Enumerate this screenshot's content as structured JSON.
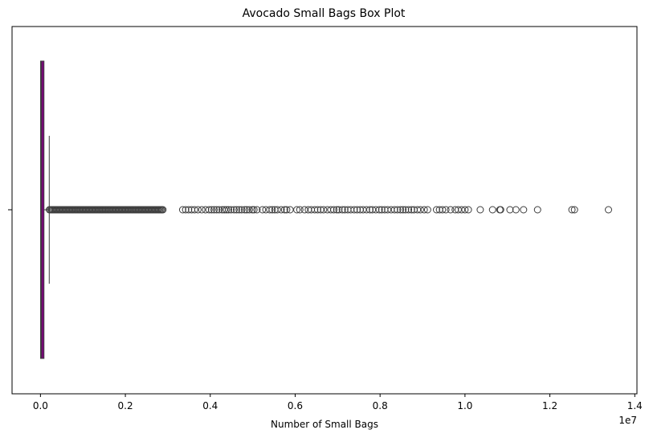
{
  "chart_data": {
    "type": "box",
    "title": "Avocado Small Bags Box Plot",
    "xlabel": "Number of Small Bags",
    "ylabel": "",
    "x_offset_text": "1e7",
    "xlim": [
      -0.06691,
      1.40512
    ],
    "xticks": [
      0.0,
      0.2,
      0.4,
      0.6,
      0.8,
      1.0,
      1.2,
      1.4
    ],
    "xtick_labels": [
      "0.0",
      "0.2",
      "0.4",
      "0.6",
      "0.8",
      "1.0",
      "1.2",
      "1.4"
    ],
    "orientation": "horizontal",
    "grid": false,
    "colors": {
      "box_fill": "#800080",
      "line": "#3d3d3d",
      "axes": "#000000"
    },
    "box": {
      "min": 0.0,
      "q1": 0.0003,
      "median": 0.0027,
      "q3": 0.0083,
      "whisker_high": 0.0207
    },
    "outlier_range_dense": [
      0.021,
      0.29
    ],
    "outliers": [
      0.335,
      0.342,
      0.349,
      0.356,
      0.363,
      0.371,
      0.38,
      0.389,
      0.397,
      0.403,
      0.409,
      0.415,
      0.421,
      0.428,
      0.433,
      0.438,
      0.443,
      0.449,
      0.456,
      0.462,
      0.468,
      0.474,
      0.481,
      0.486,
      0.492,
      0.499,
      0.503,
      0.51,
      0.523,
      0.531,
      0.54,
      0.546,
      0.552,
      0.558,
      0.567,
      0.575,
      0.58,
      0.588,
      0.604,
      0.611,
      0.622,
      0.631,
      0.638,
      0.646,
      0.653,
      0.66,
      0.667,
      0.676,
      0.684,
      0.691,
      0.698,
      0.703,
      0.711,
      0.717,
      0.724,
      0.731,
      0.739,
      0.746,
      0.753,
      0.76,
      0.768,
      0.776,
      0.782,
      0.79,
      0.798,
      0.804,
      0.811,
      0.818,
      0.826,
      0.834,
      0.841,
      0.848,
      0.854,
      0.86,
      0.867,
      0.874,
      0.88,
      0.888,
      0.895,
      0.904,
      0.912,
      0.933,
      0.94,
      0.947,
      0.955,
      0.966,
      0.977,
      0.984,
      0.992,
      1.0,
      1.008,
      1.036,
      1.065,
      1.082,
      1.084,
      1.106,
      1.12,
      1.138,
      1.171,
      1.252,
      1.258,
      1.338
    ]
  }
}
